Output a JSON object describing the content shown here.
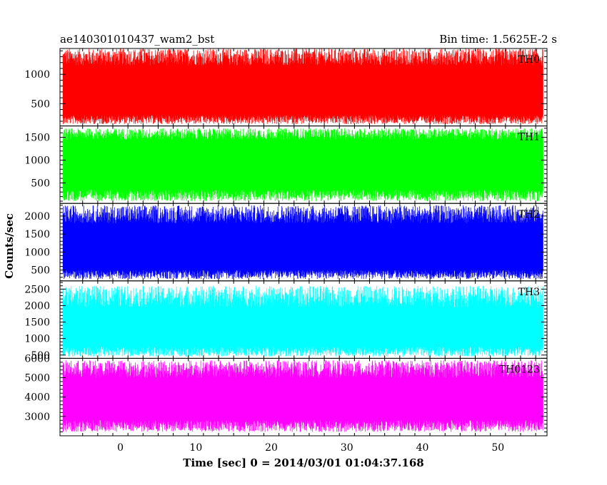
{
  "chart_data": {
    "type": "line",
    "title_left": "ae140301010437_wam2_bst",
    "title_right": "Bin time: 1.5625E-2 s",
    "xlabel": "Time [sec] 0 = 2014/03/01 01:04:37.168",
    "ylabel": "Counts/sec",
    "xlim": [
      -8.0,
      56.5
    ],
    "data_range": [
      -7.6,
      56.0
    ],
    "x_ticks": [
      0,
      10,
      20,
      30,
      40,
      50
    ],
    "panels": [
      {
        "name": "TH0",
        "color": "#ff0000",
        "ylim": [
          120,
          1440
        ],
        "ticks": [
          500,
          1000
        ],
        "tick_labels": [
          "500",
          "1000"
        ],
        "baseline_mean": 730,
        "band_low": 300,
        "band_high": 1150,
        "spike_min": 150,
        "spike_max": 1440
      },
      {
        "name": "TH1",
        "color": "#00ff00",
        "ylim": [
          50,
          1750
        ],
        "ticks": [
          500,
          1000,
          1500
        ],
        "tick_labels": [
          "500",
          "1000",
          "1500"
        ],
        "baseline_mean": 900,
        "band_low": 350,
        "band_high": 1450,
        "spike_min": 100,
        "spike_max": 1700
      },
      {
        "name": "TH2",
        "color": "#0000ff",
        "ylim": [
          200,
          2350
        ],
        "ticks": [
          500,
          1000,
          1500,
          2000
        ],
        "tick_labels": [
          "500",
          "1000",
          "1500",
          "2000"
        ],
        "baseline_mean": 1130,
        "band_low": 500,
        "band_high": 1800,
        "spike_min": 250,
        "spike_max": 2300
      },
      {
        "name": "TH3",
        "color": "#00ffff",
        "ylim": [
          400,
          2750
        ],
        "ticks": [
          500,
          1000,
          1500,
          2000,
          2500
        ],
        "tick_labels": [
          "500",
          "1000",
          "1500",
          "2000",
          "2500"
        ],
        "baseline_mean": 1320,
        "band_low": 750,
        "band_high": 1950,
        "spike_min": 450,
        "spike_max": 2600
      },
      {
        "name": "TH0123",
        "color": "#ff00ff",
        "ylim": [
          2000,
          6000
        ],
        "ticks": [
          3000,
          4000,
          5000,
          6000
        ],
        "tick_labels": [
          "3000",
          "4000",
          "5000",
          "6000"
        ],
        "baseline_mean": 3900,
        "band_low": 2800,
        "band_high": 5000,
        "spike_min": 2200,
        "spike_max": 5900
      }
    ]
  }
}
